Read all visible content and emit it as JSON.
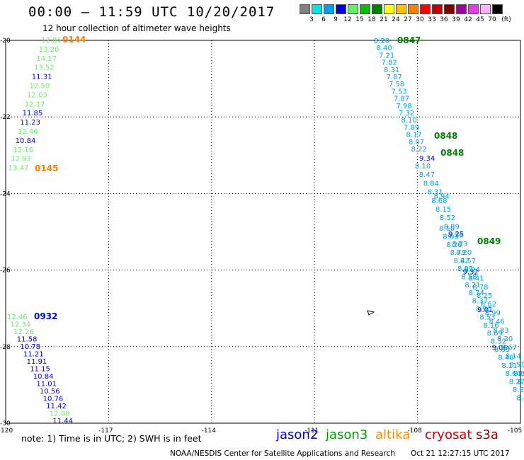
{
  "header": {
    "title": "00:00 – 11:59 UTC 10/20/2017",
    "subtitle": "12 hour collection of altimeter wave heights"
  },
  "color_scale": {
    "unit": "(ft)",
    "bins": [
      {
        "label": "3",
        "color": "#808080"
      },
      {
        "label": "6",
        "color": "#00e6e6"
      },
      {
        "label": "9",
        "color": "#00a0e6"
      },
      {
        "label": "12",
        "color": "#0000e6"
      },
      {
        "label": "15",
        "color": "#66ee66"
      },
      {
        "label": "18",
        "color": "#00c000"
      },
      {
        "label": "21",
        "color": "#008000"
      },
      {
        "label": "24",
        "color": "#ffff00"
      },
      {
        "label": "27",
        "color": "#ffc000"
      },
      {
        "label": "30",
        "color": "#ff8000"
      },
      {
        "label": "33",
        "color": "#ff0000"
      },
      {
        "label": "36",
        "color": "#c00000"
      },
      {
        "label": "39",
        "color": "#800000"
      },
      {
        "label": "42",
        "color": "#a000a0"
      },
      {
        "label": "45",
        "color": "#e040e0"
      },
      {
        "label": "70",
        "color": "#ffb0ff"
      },
      {
        "label": "",
        "color": "#000000"
      }
    ]
  },
  "axes": {
    "lon_labels": [
      "-120",
      "-117",
      "-114",
      "-111",
      "-108",
      "-105"
    ],
    "lat_labels": [
      "-20",
      "-22",
      "-24",
      "-26",
      "-28",
      "-30"
    ]
  },
  "tracks": {
    "track_A": {
      "time_labels": [
        {
          "text": "0144",
          "color": "#ff8000"
        },
        {
          "text": "0145",
          "color": "#ff8000"
        }
      ],
      "values": [
        {
          "v": "12.86",
          "c": "#66ee66"
        },
        {
          "v": "13.20",
          "c": "#66ee66"
        },
        {
          "v": "14.17",
          "c": "#66ee66"
        },
        {
          "v": "13.52",
          "c": "#66ee66"
        },
        {
          "v": "11.31",
          "c": "#0000e6"
        },
        {
          "v": "12.50",
          "c": "#66ee66"
        },
        {
          "v": "12.03",
          "c": "#66ee66"
        },
        {
          "v": "12.17",
          "c": "#66ee66"
        },
        {
          "v": "11.85",
          "c": "#0000e6"
        },
        {
          "v": "11.23",
          "c": "#0000e6"
        },
        {
          "v": "12.46",
          "c": "#66ee66"
        },
        {
          "v": "10.84",
          "c": "#0000e6"
        },
        {
          "v": "12.16",
          "c": "#66ee66"
        },
        {
          "v": "12.93",
          "c": "#66ee66"
        },
        {
          "v": "13.47",
          "c": "#66ee66"
        }
      ]
    },
    "track_B": {
      "time_labels": [
        {
          "text": "0932",
          "color": "#0000e6"
        }
      ],
      "values": [
        {
          "v": "12.46",
          "c": "#66ee66"
        },
        {
          "v": "12.34",
          "c": "#66ee66"
        },
        {
          "v": "12.26",
          "c": "#66ee66"
        },
        {
          "v": "11.58",
          "c": "#0000e6"
        },
        {
          "v": "10.78",
          "c": "#0000e6"
        },
        {
          "v": "11.21",
          "c": "#0000e6"
        },
        {
          "v": "11.91",
          "c": "#0000e6"
        },
        {
          "v": "11.15",
          "c": "#0000e6"
        },
        {
          "v": "10.84",
          "c": "#0000e6"
        },
        {
          "v": "11.01",
          "c": "#0000e6"
        },
        {
          "v": "10.56",
          "c": "#0000e6"
        },
        {
          "v": "10.76",
          "c": "#0000e6"
        },
        {
          "v": "11.42",
          "c": "#0000e6"
        },
        {
          "v": "12.08",
          "c": "#66ee66"
        },
        {
          "v": "11.44",
          "c": "#0000e6"
        }
      ]
    },
    "track_C": {
      "time_labels": [
        {
          "text": "0847",
          "color": "#008000"
        },
        {
          "text": "0848",
          "color": "#008000"
        },
        {
          "text": "0848",
          "color": "#008000"
        },
        {
          "text": "0849",
          "color": "#008000"
        }
      ],
      "values": [
        {
          "v": "8.20",
          "c": "#00a0e6"
        },
        {
          "v": "8.40",
          "c": "#00a0e6"
        },
        {
          "v": "7.21",
          "c": "#00a0e6"
        },
        {
          "v": "7.82",
          "c": "#00a0e6"
        },
        {
          "v": "8.31",
          "c": "#00a0e6"
        },
        {
          "v": "7.87",
          "c": "#00a0e6"
        },
        {
          "v": "7.58",
          "c": "#00a0e6"
        },
        {
          "v": "7.53",
          "c": "#00a0e6"
        },
        {
          "v": "7.87",
          "c": "#00a0e6"
        },
        {
          "v": "7.98",
          "c": "#00a0e6"
        },
        {
          "v": "7.32",
          "c": "#00a0e6"
        },
        {
          "v": "8.10",
          "c": "#00a0e6"
        },
        {
          "v": "7.89",
          "c": "#00a0e6"
        },
        {
          "v": "8.17",
          "c": "#00a0e6"
        },
        {
          "v": "8.07",
          "c": "#00a0e6"
        },
        {
          "v": "8.22",
          "c": "#00a0e6"
        },
        {
          "v": "9.34",
          "c": "#0000e6"
        },
        {
          "v": "8.94",
          "c": "#00a0e6"
        },
        {
          "v": "9.25",
          "c": "#0000e6"
        },
        {
          "v": "9.32",
          "c": "#0000e6"
        },
        {
          "v": "9.01",
          "c": "#0000e6"
        },
        {
          "v": "9.06",
          "c": "#0000e6"
        }
      ]
    }
  },
  "footer": {
    "note": "note: 1) Time is in UTC; 2) SWH is in feet",
    "satellites": [
      {
        "name": "jason2",
        "color": "#0000cc"
      },
      {
        "name": "jason3",
        "color": "#00a000"
      },
      {
        "name": "altika",
        "color": "#ff8c00"
      },
      {
        "name": "cryosat",
        "color": "#cc0000"
      },
      {
        "name": "s3a",
        "color": "#990000"
      }
    ],
    "credit": "NOAA/NESDIS Center for Satellite Applications and Research",
    "timestamp": "Oct 21 12:27:15 UTC 2017"
  }
}
